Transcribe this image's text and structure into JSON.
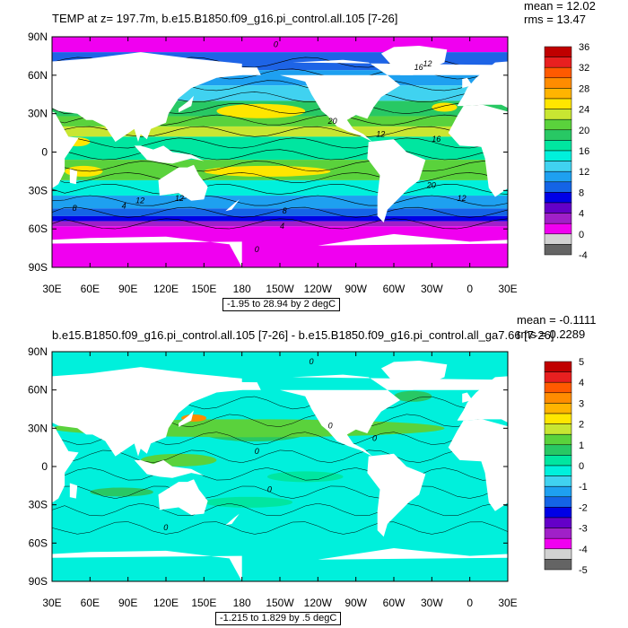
{
  "chart_data": [
    {
      "type": "heatmap",
      "title": "TEMP at z= 197.7m, b.e15.B1850.f09_g16.pi_control.all.105 [7-26]",
      "stats": {
        "mean": "mean = 12.02",
        "rms": "rms = 13.47"
      },
      "caption": "-1.95 to 28.94 by 2 degC",
      "xticks": [
        "30E",
        "60E",
        "90E",
        "120E",
        "150E",
        "180",
        "150W",
        "120W",
        "90W",
        "60W",
        "30W",
        "0",
        "30E"
      ],
      "yticks": [
        "90N",
        "60N",
        "30N",
        "0",
        "30S",
        "60S",
        "90S"
      ],
      "colorbar_labels": [
        "36",
        "32",
        "28",
        "24",
        "20",
        "16",
        "12",
        "8",
        "4",
        "0",
        "-4"
      ],
      "colorbar_colors": [
        "#c00000",
        "#e82020",
        "#ff5a00",
        "#ff8c00",
        "#ffb400",
        "#ffe600",
        "#c8e632",
        "#5ad23c",
        "#28c864",
        "#00e6a0",
        "#00f0dc",
        "#40d2f0",
        "#1ea0f0",
        "#1464e6",
        "#0000e6",
        "#6400c8",
        "#a020c8",
        "#f000f0",
        "#d2d2d2",
        "#646464"
      ],
      "contour_labels": [
        "0",
        "16",
        "12",
        "20",
        "12",
        "16",
        "20",
        "12",
        "8",
        "4",
        "8",
        "4",
        "0",
        "12",
        "12"
      ]
    },
    {
      "type": "heatmap",
      "title": "b.e15.B1850.f09_g16.pi_control.all.105 [7-26] - b.e15.B1850.f09_g16.pi_control.all_ga7.66 [7-26]",
      "stats": {
        "mean": "mean = -0.1111",
        "rms": "rms = 0.2289"
      },
      "caption": "-1.215 to 1.829 by .5 degC",
      "xticks": [
        "30E",
        "60E",
        "90E",
        "120E",
        "150E",
        "180",
        "150W",
        "120W",
        "90W",
        "60W",
        "30W",
        "0",
        "30E"
      ],
      "yticks": [
        "90N",
        "60N",
        "30N",
        "0",
        "30S",
        "60S",
        "90S"
      ],
      "colorbar_labels": [
        "5",
        "4",
        "3",
        "2",
        "1",
        "0",
        "-1",
        "-2",
        "-3",
        "-4",
        "-5"
      ],
      "colorbar_colors": [
        "#c00000",
        "#e82020",
        "#ff5a00",
        "#ff8c00",
        "#ffb400",
        "#ffe600",
        "#c8e632",
        "#5ad23c",
        "#28c864",
        "#00e6a0",
        "#00f0dc",
        "#40d2f0",
        "#1ea0f0",
        "#1464e6",
        "#0000e6",
        "#6400c8",
        "#a020c8",
        "#f000f0",
        "#d2d2d2",
        "#646464"
      ],
      "contour_labels": [
        "0",
        "0",
        "0",
        "0",
        "0",
        "0"
      ]
    }
  ]
}
